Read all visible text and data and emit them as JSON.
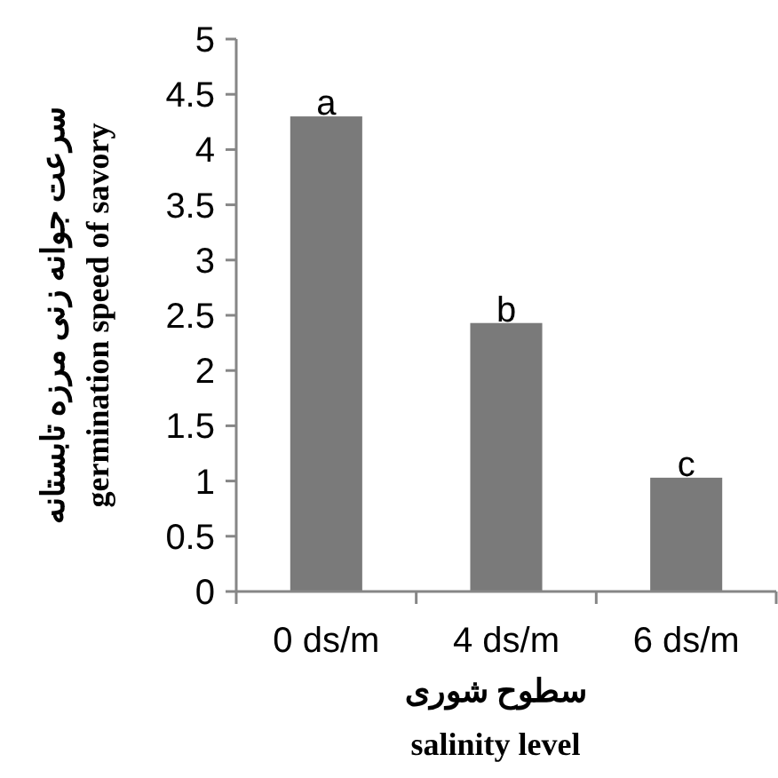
{
  "chart_data": {
    "type": "bar",
    "categories": [
      "0 ds/m",
      "4 ds/m",
      "6 ds/m"
    ],
    "values": [
      4.3,
      2.43,
      1.03
    ],
    "color": "#7a7a7a",
    "ylim": [
      0,
      5
    ],
    "yticks": [
      0,
      0.5,
      1,
      1.5,
      2,
      2.5,
      3,
      3.5,
      4,
      4.5,
      5
    ],
    "xlabel": "سطوح شوری\nsalinity level",
    "ylabel": "سرعت جوانه زنی مرزه تابستانه\ngermination speed of savory",
    "annotations": [
      {
        "text": "a",
        "x": "0 ds/m",
        "y": 4.3
      },
      {
        "text": "b",
        "x": "4 ds/m",
        "y": 2.43
      },
      {
        "text": "c",
        "x": "6 ds/m",
        "y": 1.03
      }
    ],
    "grid": false
  }
}
